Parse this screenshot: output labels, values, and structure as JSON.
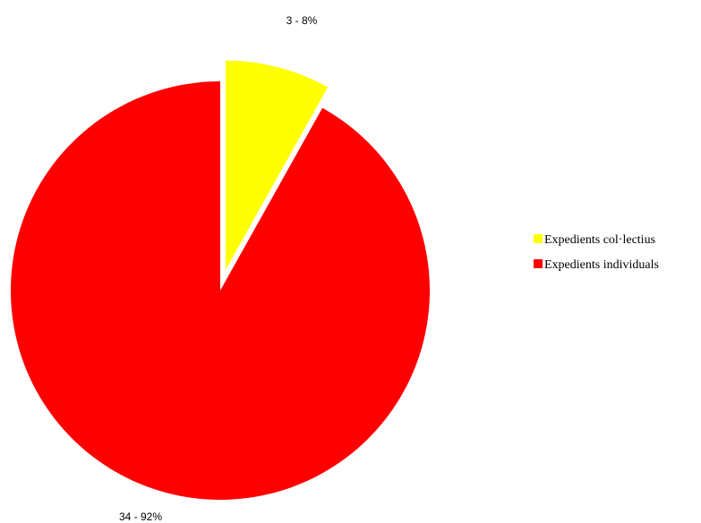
{
  "chart_data": {
    "type": "pie",
    "title": "",
    "legend_position": "right",
    "slices": [
      {
        "name": "Expedients col·lectius",
        "value": 3,
        "percent": "8%",
        "label": "3 - 8%",
        "color": "#FFFF00",
        "exploded": true
      },
      {
        "name": "Expedients individuals",
        "value": 34,
        "percent": "92%",
        "label": "34 - 92%",
        "color": "#FF0000",
        "exploded": false
      }
    ]
  }
}
